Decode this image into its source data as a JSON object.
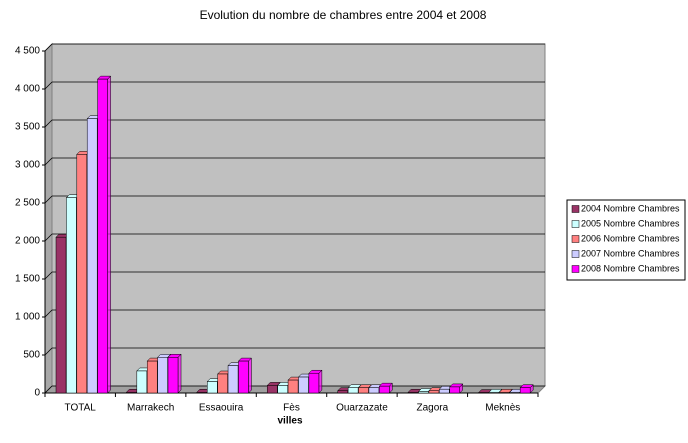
{
  "chart_data": {
    "type": "bar",
    "title": "Evolution du nombre de chambres entre 2004 et 2008",
    "x_label": "villes",
    "categories": [
      "TOTAL",
      "Marrakech",
      "Essaouira",
      "Fès",
      "Ouarzazate",
      "Zagora",
      "Meknès"
    ],
    "series": [
      {
        "name": "2004 Nombre Chambres",
        "color": "#993366",
        "values": [
          2050,
          10,
          10,
          100,
          30,
          10,
          5
        ]
      },
      {
        "name": "2005 Nombre Chambres",
        "color": "#ccffff",
        "values": [
          2570,
          290,
          150,
          100,
          70,
          20,
          10
        ]
      },
      {
        "name": "2006 Nombre Chambres",
        "color": "#ff8080",
        "values": [
          3140,
          420,
          250,
          170,
          70,
          30,
          10
        ]
      },
      {
        "name": "2007 Nombre Chambres",
        "color": "#ccccff",
        "values": [
          3610,
          470,
          360,
          210,
          70,
          50,
          10
        ]
      },
      {
        "name": "2008 Nombre Chambres",
        "color": "#ff00ff",
        "values": [
          4130,
          470,
          420,
          260,
          90,
          80,
          70
        ]
      }
    ],
    "ylim": [
      0,
      4500
    ],
    "yticks": [
      0,
      500,
      {
        "value": 1000,
        "label": "1 000"
      },
      {
        "value": 1500,
        "label": "1 500"
      },
      {
        "value": 2000,
        "label": "2 000"
      },
      {
        "value": 2500,
        "label": "2 500"
      },
      {
        "value": 3000,
        "label": "3 000"
      },
      {
        "value": 3500,
        "label": "3 500"
      },
      {
        "value": 4000,
        "label": "4 000"
      },
      {
        "value": 4500,
        "label": "4 500"
      }
    ],
    "grid": true,
    "legend": "right"
  }
}
